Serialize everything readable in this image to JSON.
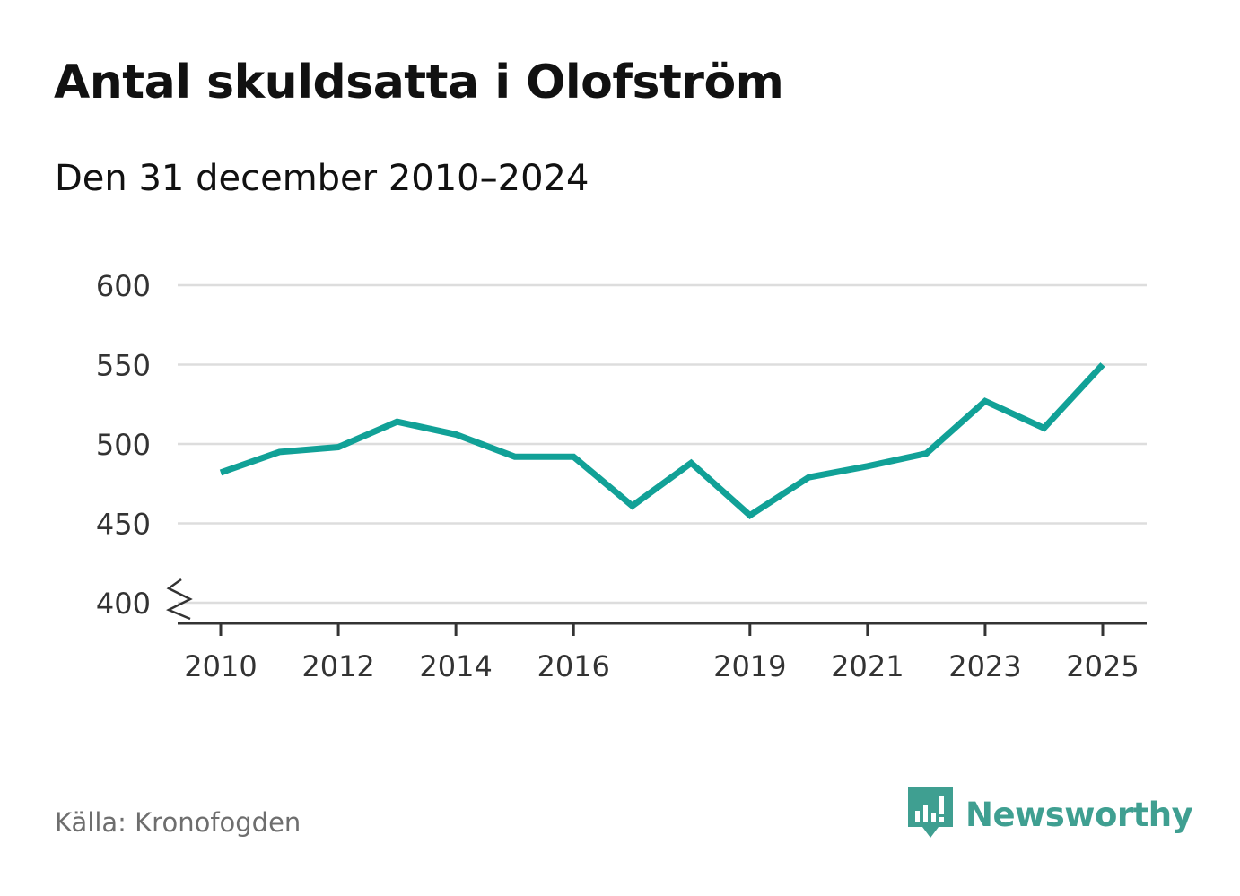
{
  "title": "Antal skuldsatta i Olofström",
  "subtitle": "Den 31 december 2010–2024",
  "source": "Källa: Kronofogden",
  "brand": {
    "name": "Newsworthy",
    "icon": "newsworthy-logo-icon"
  },
  "colors": {
    "line": "#11a197",
    "grid": "#dddddd",
    "axis": "#333333",
    "brand": "#3f9f91"
  },
  "chart_data": {
    "type": "line",
    "title": "Antal skuldsatta i Olofström",
    "xlabel": "",
    "ylabel": "",
    "x": [
      2010,
      2011,
      2012,
      2013,
      2014,
      2015,
      2016,
      2017,
      2018,
      2019,
      2020,
      2021,
      2022,
      2023,
      2024,
      2025
    ],
    "series": [
      {
        "name": "Antal skuldsatta",
        "values": [
          482,
          495,
          498,
          514,
          506,
          492,
          492,
          461,
          488,
          455,
          479,
          486,
          494,
          527,
          510,
          550
        ]
      }
    ],
    "xticks": [
      "2010",
      "2012",
      "2014",
      "2016",
      "2019",
      "2021",
      "2023",
      "2025"
    ],
    "yticks": [
      "400",
      "450",
      "500",
      "550",
      "600"
    ],
    "ylim": [
      400,
      600
    ],
    "axis_break": true,
    "grid": true
  }
}
